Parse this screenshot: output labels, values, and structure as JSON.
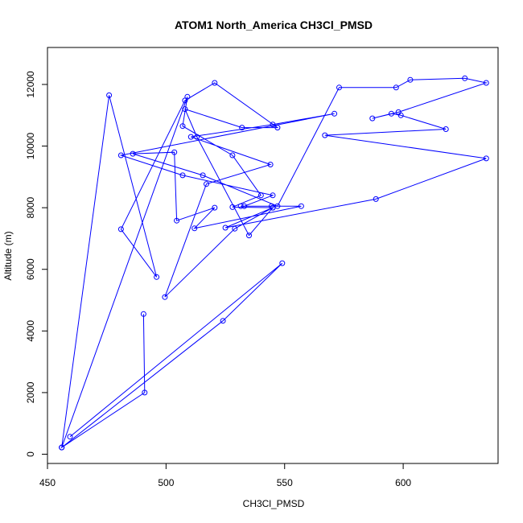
{
  "chart_data": {
    "type": "line",
    "title": "ATOM1 North_America CH3Cl_PMSD",
    "xlabel": "CH3Cl_PMSD",
    "ylabel": "Altitude (m)",
    "xlim": [
      450,
      640
    ],
    "ylim": [
      -300,
      13200
    ],
    "xticks": [
      450,
      500,
      550,
      600
    ],
    "yticks": [
      0,
      2000,
      4000,
      6000,
      8000,
      10000,
      12000
    ],
    "grid": false,
    "legend": "none",
    "series_color": "#0000ff",
    "series": [
      {
        "x": [
          459.5,
          549,
          524,
          456,
          476,
          496,
          481,
          508,
          520.5,
          547,
          532,
          508,
          513,
          535,
          545,
          529,
          499.5,
          517,
          544,
          510.5,
          545,
          571,
          481,
          507,
          545,
          533,
          531.5,
          544.5,
          557,
          512,
          520.5,
          504.5,
          503.5,
          486,
          515.5,
          547,
          573,
          597,
          603,
          626,
          635,
          598,
          587,
          595,
          599,
          618,
          567,
          635,
          588.5,
          525,
          545,
          528,
          540,
          528,
          507,
          509,
          456,
          491,
          490.5
        ],
        "y": [
          570,
          6200,
          4330,
          220,
          11650,
          5750,
          7300,
          11480,
          12050,
          10600,
          10600,
          11200,
          10300,
          7100,
          8000,
          7320,
          5100,
          8770,
          9400,
          10300,
          10700,
          11050,
          9700,
          9050,
          8400,
          8050,
          8050,
          8050,
          8050,
          7330,
          8000,
          7580,
          9800,
          9750,
          9050,
          8050,
          11900,
          11900,
          12150,
          12200,
          12050,
          11100,
          10900,
          11050,
          11000,
          10550,
          10350,
          9600,
          8280,
          7350,
          8000,
          8020,
          8400,
          9700,
          10650,
          11600,
          220,
          2000,
          4550
        ]
      }
    ]
  }
}
